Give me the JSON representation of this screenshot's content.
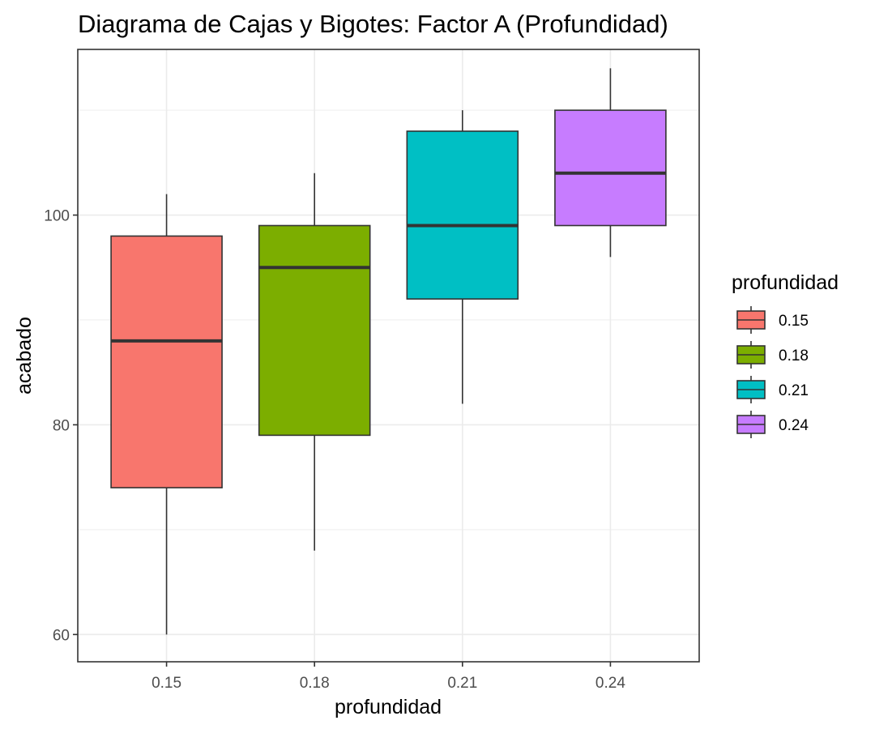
{
  "chart_data": {
    "type": "boxplot",
    "title": "Diagrama de Cajas y Bigotes: Factor A (Profundidad)",
    "xlabel": "profundidad",
    "ylabel": "acabado",
    "ylim": [
      57.4,
      115.8
    ],
    "y_ticks": [
      60,
      80,
      100
    ],
    "grid": true,
    "legend": {
      "title": "profundidad",
      "placement": "right"
    },
    "categories": [
      "0.15",
      "0.18",
      "0.21",
      "0.24"
    ],
    "boxes": [
      {
        "category": "0.15",
        "min": 60,
        "q1": 74,
        "median": 88,
        "q3": 98,
        "max": 102,
        "color": "#F8766D"
      },
      {
        "category": "0.18",
        "min": 68,
        "q1": 79,
        "median": 95,
        "q3": 99,
        "max": 104,
        "color": "#7CAE00"
      },
      {
        "category": "0.21",
        "min": 82,
        "q1": 92,
        "median": 99,
        "q3": 108,
        "max": 110,
        "color": "#00BFC4"
      },
      {
        "category": "0.24",
        "min": 96,
        "q1": 99,
        "median": 104,
        "q3": 110,
        "max": 114,
        "color": "#C77CFF"
      }
    ]
  }
}
